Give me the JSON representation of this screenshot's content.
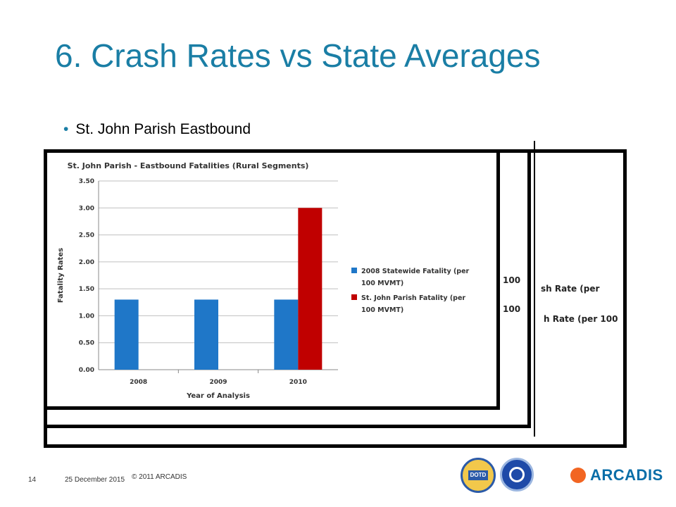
{
  "slide": {
    "title": "6. Crash Rates vs State Averages",
    "bullet": "St. John Parish Eastbound",
    "hidden_fragments": [
      "100",
      "100",
      "sh Rate (per",
      "h Rate (per 100"
    ]
  },
  "footer": {
    "page_number": "14",
    "date": "25 December 2015",
    "copyright": "© 2011 ARCADIS",
    "logo_dotd": "DOTD",
    "brand": "ARCADIS"
  },
  "colors": {
    "title": "#1a7ea5",
    "statewide": "#1f77c8",
    "parish": "#c00000"
  },
  "chart_data": {
    "type": "bar",
    "title": "St. John Parish - Eastbound Fatalities (Rural Segments)",
    "xlabel": "Year of Analysis",
    "ylabel": "Fatality Rates",
    "categories": [
      "2008",
      "2009",
      "2010"
    ],
    "series": [
      {
        "name": "2008 Statewide Fatality (per 100 MVMT)",
        "color": "#1f77c8",
        "values": [
          1.3,
          1.3,
          1.3
        ]
      },
      {
        "name": "St. John Parish Fatality (per 100 MVMT)",
        "color": "#c00000",
        "values": [
          null,
          null,
          3.0
        ]
      }
    ],
    "ylim": [
      0,
      3.5
    ],
    "yticks": [
      "0.00",
      "0.50",
      "1.00",
      "1.50",
      "2.00",
      "2.50",
      "3.00",
      "3.50"
    ],
    "grid": true,
    "legend": "right"
  }
}
